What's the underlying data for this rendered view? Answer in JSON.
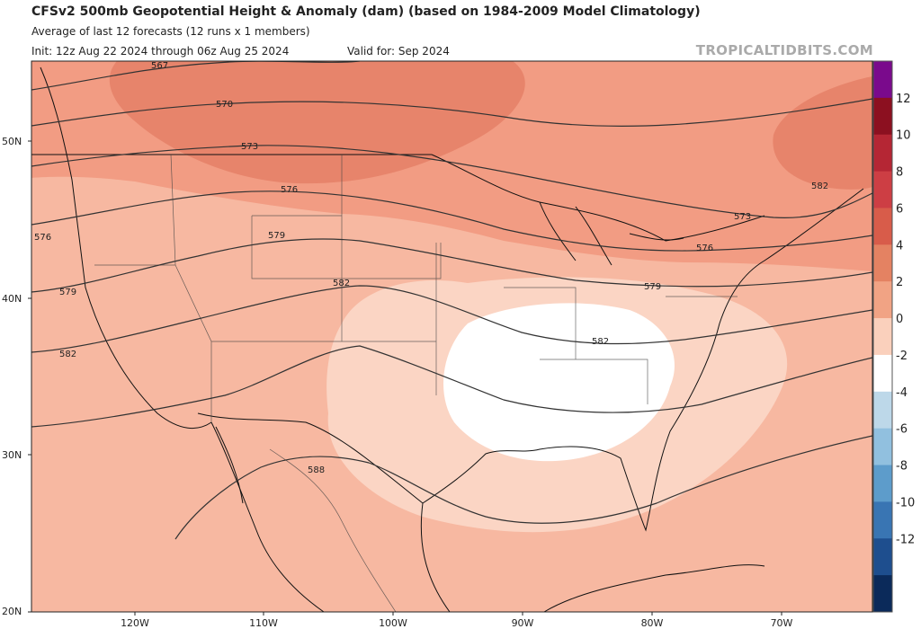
{
  "header": {
    "title": "CFSv2 500mb Geopotential Height & Anomaly (dam) (based on 1984-2009 Model Climatology)",
    "subtitle": "Average of last 12 forecasts (12 runs x 1 members)",
    "init": "Init: 12z Aug 22 2024 through 06z Aug 25 2024",
    "valid": "Valid for: Sep 2024",
    "credit": "TROPICALTIDBITS.COM"
  },
  "axes": {
    "lat_labels": [
      "50N",
      "40N",
      "30N",
      "20N"
    ],
    "lon_labels": [
      "120W",
      "110W",
      "100W",
      "90W",
      "80W",
      "70W"
    ]
  },
  "contours": {
    "labels": [
      "567",
      "570",
      "573",
      "576",
      "579",
      "582",
      "588",
      "573",
      "576",
      "579",
      "582",
      "582",
      "576",
      "579",
      "582"
    ]
  },
  "colorbar": {
    "ticks": [
      "12",
      "10",
      "8",
      "6",
      "4",
      "2",
      "0",
      "-2",
      "-4",
      "-6",
      "-8",
      "-10",
      "-12"
    ],
    "colors": [
      "#7a0a8c",
      "#8c1020",
      "#b52634",
      "#cd3e44",
      "#d85c4a",
      "#e48262",
      "#f1a384",
      "#fad0bc",
      "#ffffff",
      "#bdd8e9",
      "#91c0df",
      "#5d9ccb",
      "#3975b3",
      "#1e4e8e",
      "#0b2a5a"
    ]
  },
  "anomaly_colors": {
    "strong": "#e7846b",
    "moderate": "#f29c83",
    "base": "#f7b8a1",
    "light": "#fbd5c4",
    "neutral": "#ffffff"
  }
}
